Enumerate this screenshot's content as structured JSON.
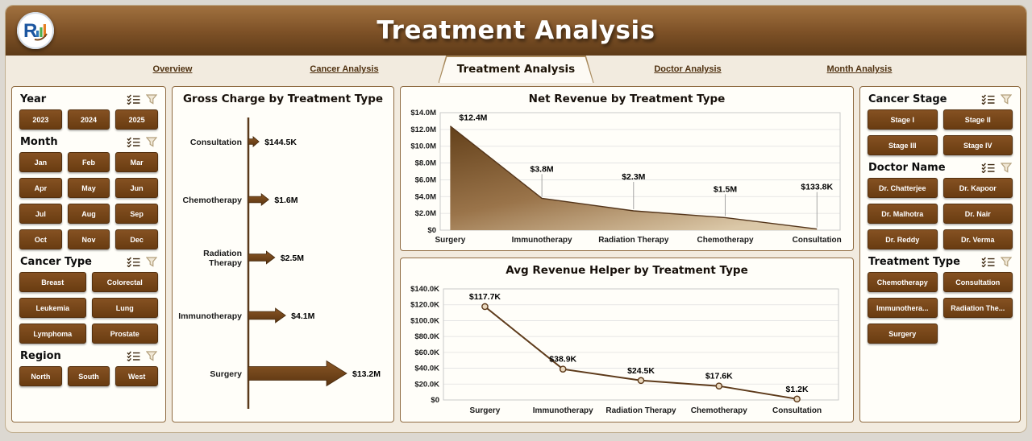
{
  "header": {
    "title": "Treatment Analysis",
    "logo_text": "R"
  },
  "tabs": [
    {
      "label": "Overview",
      "active": false
    },
    {
      "label": "Cancer Analysis",
      "active": false
    },
    {
      "label": "Treatment Analysis",
      "active": true
    },
    {
      "label": "Doctor Analysis",
      "active": false
    },
    {
      "label": "Month Analysis",
      "active": false
    }
  ],
  "colors": {
    "header_brown_light": "#a1713f",
    "header_brown_dark": "#5e3b18",
    "button_brown": "#6f4014",
    "panel_border": "#8f6b42",
    "background": "#f2ebdf",
    "accent_dark": "#5d3a1a"
  },
  "left_filters": [
    {
      "title": "Year",
      "cols": 3,
      "items": [
        "2023",
        "2024",
        "2025"
      ]
    },
    {
      "title": "Month",
      "cols": 3,
      "items": [
        "Jan",
        "Feb",
        "Mar",
        "Apr",
        "May",
        "Jun",
        "Jul",
        "Aug",
        "Sep",
        "Oct",
        "Nov",
        "Dec"
      ]
    },
    {
      "title": "Cancer Type",
      "cols": 2,
      "items": [
        "Breast",
        "Colorectal",
        "Leukemia",
        "Lung",
        "Lymphoma",
        "Prostate"
      ]
    },
    {
      "title": "Region",
      "cols": 3,
      "items": [
        "North",
        "South",
        "West"
      ]
    }
  ],
  "right_filters": [
    {
      "title": "Cancer Stage",
      "cols": 2,
      "items": [
        "Stage I",
        "Stage II",
        "Stage III",
        "Stage IV"
      ]
    },
    {
      "title": "Doctor Name",
      "cols": 2,
      "items": [
        "Dr. Chatterjee",
        "Dr. Kapoor",
        "Dr. Malhotra",
        "Dr. Nair",
        "Dr. Reddy",
        "Dr. Verma"
      ]
    },
    {
      "title": "Treatment Type",
      "cols": 2,
      "items": [
        "Chemotherapy",
        "Consultation",
        "Immunothera...",
        "Radiation The...",
        "Surgery"
      ]
    }
  ],
  "chart_data": [
    {
      "type": "bar",
      "variant": "arrow-funnel",
      "title": "Gross Charge by Treatment Type",
      "categories": [
        "Consultation",
        "Chemotherapy",
        "Radiation Therapy",
        "Immunotherapy",
        "Surgery"
      ],
      "values": [
        144500,
        1600000,
        2500000,
        4100000,
        13200000
      ],
      "labels": [
        "$144.5K",
        "$1.6M",
        "$2.5M",
        "$4.1M",
        "$13.2M"
      ],
      "xlabel": "",
      "ylabel": "",
      "legend": "none"
    },
    {
      "type": "area",
      "title": "Net Revenue by Treatment Type",
      "categories": [
        "Surgery",
        "Immunotherapy",
        "Radiation Therapy",
        "Chemotherapy",
        "Consultation"
      ],
      "values": [
        12400000,
        3800000,
        2300000,
        1500000,
        133800
      ],
      "labels": [
        "$12.4M",
        "$3.8M",
        "$2.3M",
        "$1.5M",
        "$133.8K"
      ],
      "ylim": [
        0,
        14000000
      ],
      "yticks": [
        "$0",
        "$2.0M",
        "$4.0M",
        "$6.0M",
        "$8.0M",
        "$10.0M",
        "$12.0M",
        "$14.0M"
      ],
      "grid": true,
      "legend": "none",
      "xlabel": "",
      "ylabel": ""
    },
    {
      "type": "line",
      "title": "Avg Revenue Helper by Treatment Type",
      "categories": [
        "Surgery",
        "Immunotherapy",
        "Radiation Therapy",
        "Chemotherapy",
        "Consultation"
      ],
      "values": [
        117700,
        38900,
        24500,
        17600,
        1200
      ],
      "labels": [
        "$117.7K",
        "$38.9K",
        "$24.5K",
        "$17.6K",
        "$1.2K"
      ],
      "ylim": [
        0,
        140000
      ],
      "yticks": [
        "$0",
        "$20.0K",
        "$40.0K",
        "$60.0K",
        "$80.0K",
        "$100.0K",
        "$120.0K",
        "$140.0K"
      ],
      "grid": true,
      "legend": "none",
      "xlabel": "",
      "ylabel": ""
    }
  ]
}
